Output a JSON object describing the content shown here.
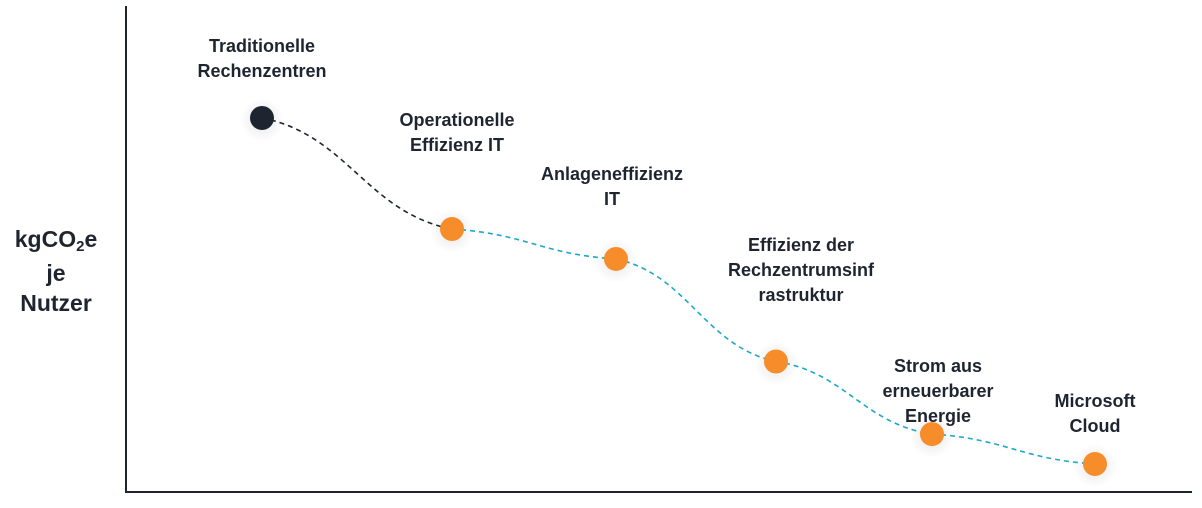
{
  "chart_data": {
    "type": "line",
    "title": "",
    "xlabel": "",
    "ylabel_parts": {
      "main": "kgCO",
      "sub": "2",
      "suffix": "e",
      "line2": "je",
      "line3": "Nutzer"
    },
    "grid": false,
    "legend": "none",
    "points": [
      {
        "name": "Traditionelle Rechenzentren",
        "label_lines": [
          "Traditionelle",
          "Rechenzentren"
        ],
        "color": "#1f2530",
        "x": 1,
        "y": 1.0
      },
      {
        "name": "Operationelle Effizienz IT",
        "label_lines": [
          "Operationelle",
          "Effizienz IT"
        ],
        "color": "#f78c2b",
        "x": 2,
        "y": 0.74
      },
      {
        "name": "Anlageneffizienz IT",
        "label_lines": [
          "Anlageneffizienz",
          "IT"
        ],
        "color": "#f78c2b",
        "x": 3,
        "y": 0.67
      },
      {
        "name": "Effizienz der Rechzentrumsinfrastruktur",
        "label_lines": [
          "Effizienz der",
          "Rechzentrumsinf",
          "rastruktur"
        ],
        "color": "#f78c2b",
        "x": 4,
        "y": 0.43
      },
      {
        "name": "Strom aus erneuerbarer Energie",
        "label_lines": [
          "Strom aus",
          "erneuerbarer",
          "Energie"
        ],
        "color": "#f78c2b",
        "x": 5,
        "y": 0.26
      },
      {
        "name": "Microsoft Cloud",
        "label_lines": [
          "Microsoft",
          "Cloud"
        ],
        "color": "#f78c2b",
        "x": 6,
        "y": 0.19
      }
    ],
    "segment_colors": {
      "first": "#1f2530",
      "rest": "#1ea8c8"
    }
  }
}
